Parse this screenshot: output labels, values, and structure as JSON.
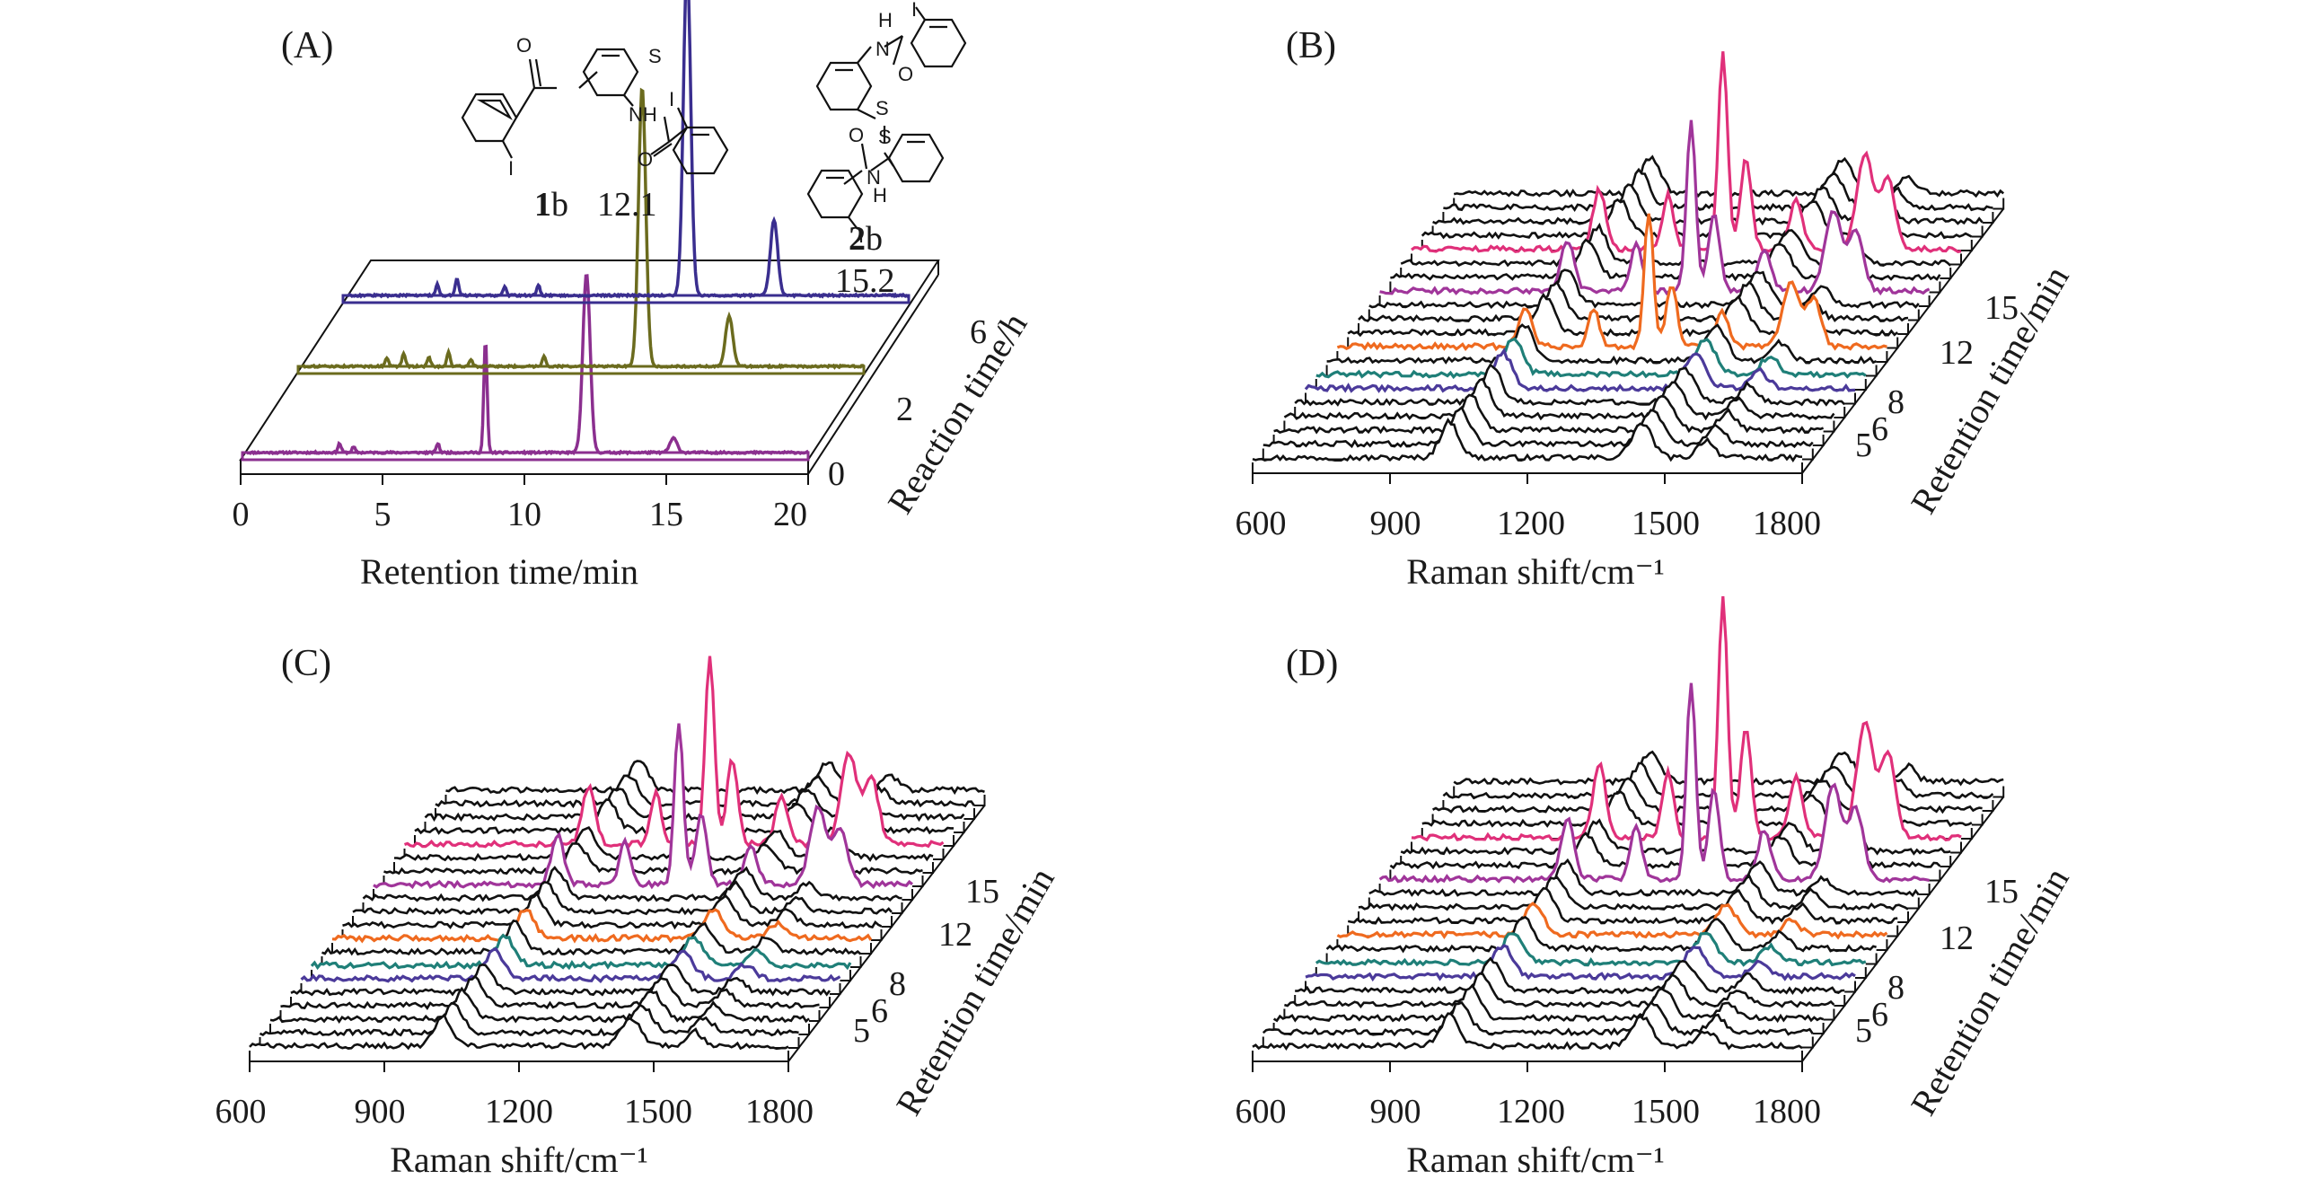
{
  "colors": {
    "black": "#111111",
    "purple": "#8b2f8f",
    "olive": "#6b6b1e",
    "indigo": "#3a2e8f",
    "magenta": "#e0307a",
    "violet": "#a0359a",
    "orange": "#ef6a1f",
    "teal": "#1f7f78",
    "blue": "#4b3a9a"
  },
  "chart_data": [
    {
      "panel": "(A)",
      "type": "line",
      "xlabel": "Retention time/min",
      "zlabel": "Reaction time/h",
      "xticks": [
        "0",
        "5",
        "10",
        "15",
        "20"
      ],
      "xlim": [
        0,
        20
      ],
      "zticks": [
        "0",
        "2",
        "6"
      ],
      "series": [
        {
          "name": "0",
          "color": "purple",
          "peaks": [
            [
              3.3,
              0.05
            ],
            [
              3.8,
              0.03
            ],
            [
              6.8,
              0.05
            ],
            [
              8.5,
              0.62
            ],
            [
              12.1,
              1.0
            ],
            [
              15.2,
              0.08
            ]
          ]
        },
        {
          "name": "2",
          "color": "olive",
          "peaks": [
            [
              3.0,
              0.05
            ],
            [
              3.6,
              0.07
            ],
            [
              4.5,
              0.05
            ],
            [
              5.2,
              0.08
            ],
            [
              6.0,
              0.04
            ],
            [
              8.6,
              0.06
            ],
            [
              12.1,
              1.55
            ],
            [
              15.2,
              0.28
            ]
          ]
        },
        {
          "name": "6",
          "color": "indigo",
          "peaks": [
            [
              3.2,
              0.06
            ],
            [
              3.9,
              0.09
            ],
            [
              5.6,
              0.05
            ],
            [
              6.8,
              0.06
            ],
            [
              12.1,
              1.85
            ],
            [
              15.2,
              0.42
            ]
          ]
        }
      ],
      "annotations": [
        {
          "text": "12.1",
          "label": "1b",
          "bold": "1",
          "suffix": "b"
        },
        {
          "text": "15.2",
          "label": "2b",
          "bold": "2",
          "suffix": "b"
        }
      ]
    },
    {
      "panel": "(B)",
      "type": "line",
      "xlabel": "Raman shift/cm⁻¹",
      "zlabel": "Retention time/min",
      "xticks": [
        "600",
        "900",
        "1200",
        "1500",
        "1800"
      ],
      "xlim": [
        600,
        1800
      ],
      "zticks": [
        "5",
        "6",
        "8",
        "12",
        "15"
      ],
      "colored_spectra": {
        "5": "blue",
        "6": "teal",
        "8": "orange",
        "12": "violet",
        "15": "magenta"
      },
      "spectra_count": 20
    },
    {
      "panel": "(C)",
      "type": "line",
      "xlabel": "Raman shift/cm⁻¹",
      "zlabel": "Retention time/min",
      "xticks": [
        "600",
        "900",
        "1200",
        "1500",
        "1800"
      ],
      "xlim": [
        600,
        1800
      ],
      "zticks": [
        "5",
        "6",
        "8",
        "12",
        "15"
      ],
      "colored_spectra": {
        "5": "blue",
        "6": "teal",
        "8": "orange",
        "12": "violet",
        "15": "magenta"
      },
      "spectra_count": 20
    },
    {
      "panel": "(D)",
      "type": "line",
      "xlabel": "Raman shift/cm⁻¹",
      "zlabel": "Retention time/min",
      "xticks": [
        "600",
        "900",
        "1200",
        "1500",
        "1800"
      ],
      "xlim": [
        600,
        1800
      ],
      "zticks": [
        "5",
        "6",
        "8",
        "12",
        "15"
      ],
      "colored_spectra": {
        "5": "blue",
        "6": "teal",
        "8": "orange",
        "12": "violet",
        "15": "magenta"
      },
      "spectra_count": 20
    }
  ],
  "chem": {
    "I": "I",
    "S": "S",
    "NH": "NH",
    "O": "O",
    "N": "N",
    "H": "H"
  }
}
